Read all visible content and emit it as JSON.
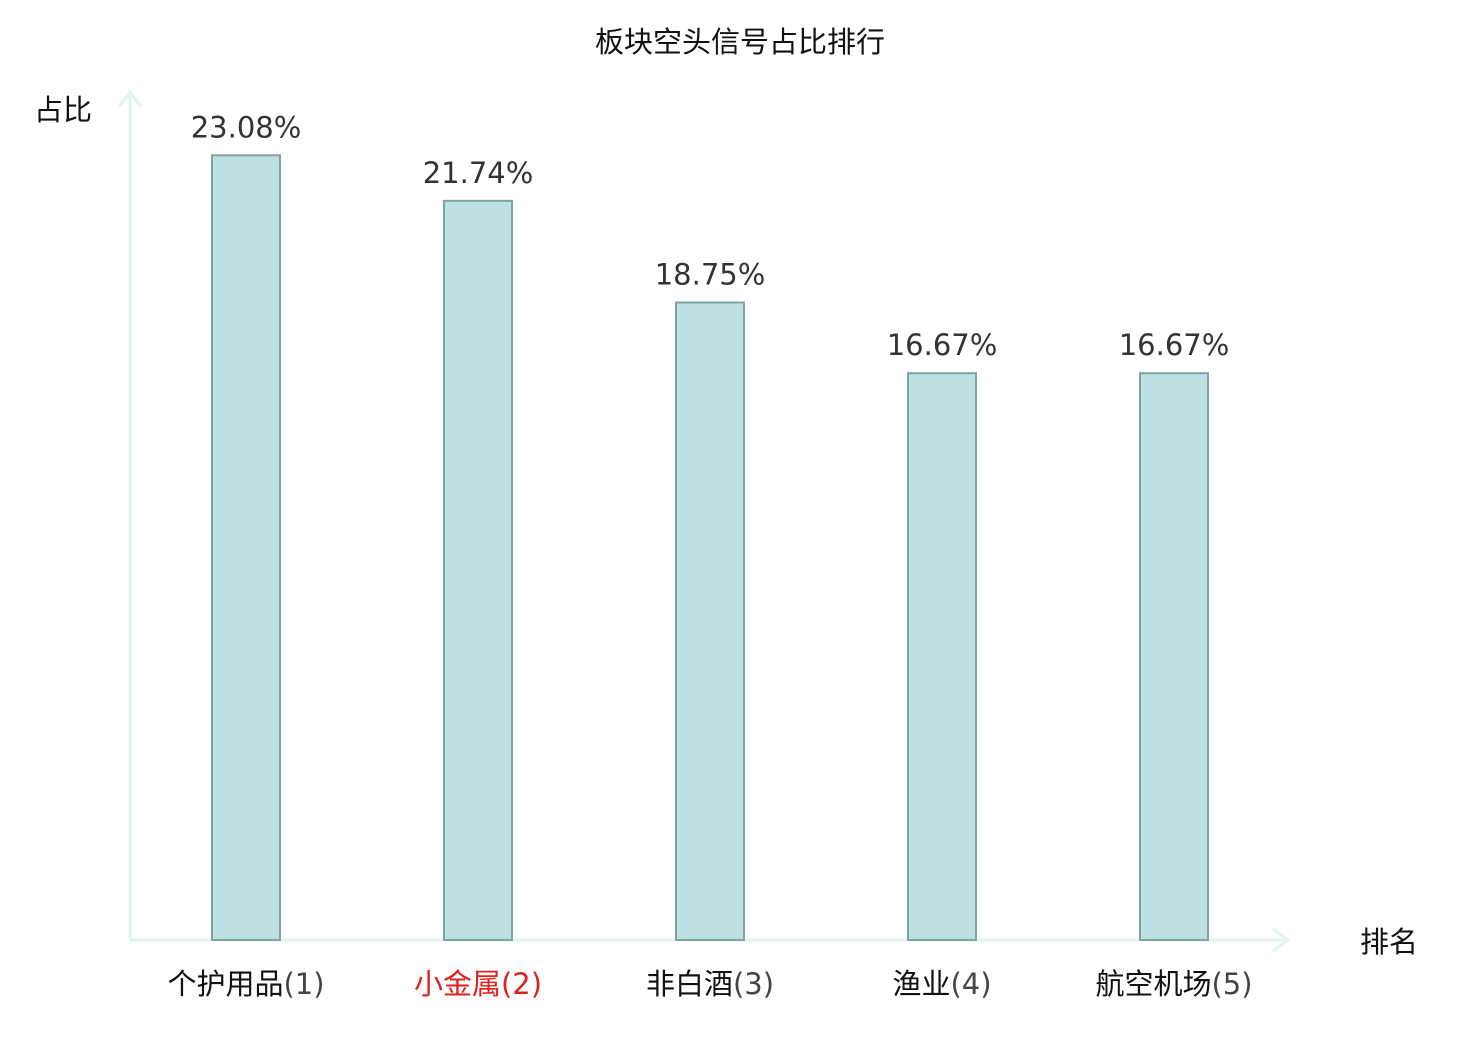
{
  "chart_data": {
    "type": "bar",
    "title": "板块空头信号占比排行",
    "ylabel": "占比",
    "xlabel": "排名",
    "ylim": [
      0,
      25
    ],
    "grid": false,
    "categories": [
      "个护用品",
      "小金属",
      "非白酒",
      "渔业",
      "航空机场"
    ],
    "ranks": [
      "(1)",
      "(2)",
      "(3)",
      "(4)",
      "(5)"
    ],
    "values": [
      23.08,
      21.74,
      18.75,
      16.67,
      16.67
    ],
    "value_labels": [
      "23.08%",
      "21.74%",
      "18.75%",
      "16.67%",
      "16.67%"
    ],
    "highlight_index": 1,
    "colors": {
      "bar_fill": "#bde0e2",
      "bar_stroke": "#7fa3a5",
      "axis": "#e2f3f0",
      "highlight_text": "#e02020",
      "value_text": "#333333",
      "text": "#111111"
    }
  }
}
